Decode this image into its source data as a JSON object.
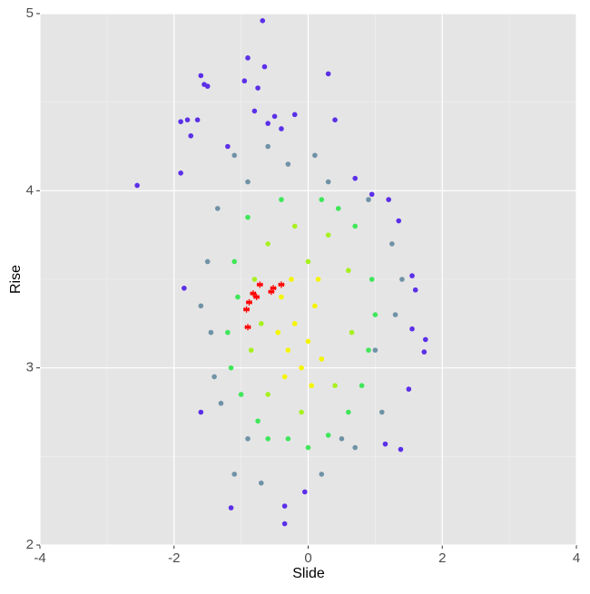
{
  "chart_data": {
    "type": "scatter",
    "x_label": "Slide",
    "y_label": "Rise",
    "xlim": [
      -4,
      4
    ],
    "ylim": [
      2,
      5
    ],
    "xticks": [
      -4,
      -2,
      0,
      2,
      4
    ],
    "yticks": [
      2,
      3,
      4,
      5
    ],
    "x_minor_ticks": [
      -3,
      -1,
      1,
      3
    ],
    "y_minor_ticks": [
      2.5,
      3.5,
      4.5
    ],
    "grid": true,
    "series": [
      {
        "color": "#5b2fe8",
        "marker": "dot",
        "x": [
          -0.68,
          0.3,
          -1.6,
          -1.55,
          -1.5,
          -0.9,
          -0.65,
          -0.95,
          -0.75,
          -1.9,
          -1.8,
          -1.65,
          -0.8,
          -0.5,
          -0.2,
          0.4,
          -2.55,
          -1.9,
          -1.75,
          -1.2,
          -0.6,
          -0.4,
          0.7,
          0.95,
          1.2,
          1.35,
          1.55,
          1.6,
          1.75,
          1.73,
          1.55,
          1.38,
          -0.35,
          -0.35,
          -1.15,
          -0.05,
          -1.85,
          -1.6,
          1.5,
          1.15
        ],
        "y": [
          4.96,
          4.66,
          4.65,
          4.6,
          4.59,
          4.75,
          4.7,
          4.62,
          4.58,
          4.39,
          4.4,
          4.4,
          4.45,
          4.42,
          4.43,
          4.4,
          4.03,
          4.1,
          4.31,
          4.25,
          4.38,
          4.35,
          4.07,
          3.98,
          3.95,
          3.83,
          3.52,
          3.44,
          3.16,
          3.09,
          3.22,
          2.54,
          2.12,
          2.22,
          2.21,
          2.3,
          3.45,
          2.75,
          2.88,
          2.57
        ]
      },
      {
        "color": "#6f92a6",
        "marker": "dot",
        "x": [
          -1.5,
          -1.45,
          -1.3,
          -1.1,
          -0.7,
          0.2,
          0.7,
          1.1,
          1.3,
          1.25,
          0.9,
          0.3,
          -0.3,
          -0.9,
          -1.35,
          -1.6,
          -1.4,
          -0.9,
          0.5,
          1.4,
          -1.1,
          0.1,
          -0.6,
          1.0
        ],
        "y": [
          3.6,
          3.2,
          2.8,
          2.4,
          2.35,
          2.4,
          2.55,
          2.75,
          3.3,
          3.7,
          3.95,
          4.05,
          4.15,
          4.05,
          3.9,
          3.35,
          2.95,
          2.6,
          2.6,
          3.5,
          4.2,
          4.2,
          4.25,
          3.1
        ]
      },
      {
        "color": "#3fe65a",
        "marker": "dot",
        "x": [
          -1.1,
          -1.2,
          -1.0,
          -0.6,
          0.0,
          0.6,
          0.9,
          0.95,
          0.7,
          0.2,
          -0.4,
          -0.9,
          -1.15,
          0.8,
          -0.75,
          0.45,
          -1.05,
          1.0,
          0.3,
          -0.3
        ],
        "y": [
          3.6,
          3.2,
          2.85,
          2.6,
          2.55,
          2.75,
          3.1,
          3.5,
          3.8,
          3.95,
          3.95,
          3.85,
          3.0,
          2.9,
          2.7,
          3.9,
          3.4,
          3.3,
          2.62,
          2.6
        ]
      },
      {
        "color": "#a8f020",
        "marker": "dot",
        "x": [
          -0.8,
          -0.85,
          -0.6,
          -0.1,
          0.4,
          0.65,
          0.6,
          0.3,
          -0.2,
          -0.6,
          0.0,
          -0.7
        ],
        "y": [
          3.5,
          3.1,
          2.85,
          2.75,
          2.9,
          3.2,
          3.55,
          3.75,
          3.8,
          3.7,
          3.6,
          3.25
        ]
      },
      {
        "color": "#f5f500",
        "marker": "dot",
        "x": [
          -0.4,
          -0.3,
          -0.2,
          0.0,
          0.1,
          -0.1,
          0.2,
          -0.45,
          -0.25,
          0.15,
          -0.35,
          0.05
        ],
        "y": [
          3.4,
          3.1,
          3.25,
          3.15,
          3.35,
          3.0,
          3.05,
          3.2,
          3.5,
          3.5,
          2.95,
          2.9
        ]
      },
      {
        "color": "#ff0000",
        "marker": "asterisk",
        "x": [
          -0.9,
          -0.92,
          -0.88,
          -0.82,
          -0.77,
          -0.72,
          -0.55,
          -0.52,
          -0.4
        ],
        "y": [
          3.23,
          3.33,
          3.37,
          3.42,
          3.4,
          3.47,
          3.43,
          3.45,
          3.47
        ]
      }
    ]
  }
}
